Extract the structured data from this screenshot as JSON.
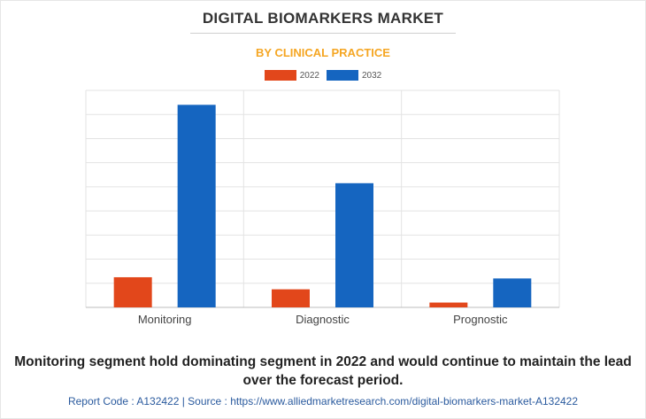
{
  "header": {
    "title": "DIGITAL BIOMARKERS MARKET",
    "subtitle": "BY CLINICAL PRACTICE"
  },
  "colors": {
    "series_2022": "#e2471b",
    "series_2032": "#1565c0",
    "grid": "#e3e3e3",
    "subtitle": "#f5a623"
  },
  "chart_data": {
    "type": "bar",
    "categories": [
      "Monitoring",
      "Diagnostic",
      "Prognostic"
    ],
    "series": [
      {
        "name": "2022",
        "values": [
          12.5,
          7.5,
          2
        ]
      },
      {
        "name": "2032",
        "values": [
          84,
          51.5,
          12
        ]
      }
    ],
    "ylim": [
      0,
      90
    ],
    "grid": true,
    "legend_position": "top-center"
  },
  "caption": "Monitoring segment hold dominating segment in 2022 and would continue to maintain the lead over the forecast period.",
  "footer": "Report Code : A132422  |  Source : https://www.alliedmarketresearch.com/digital-biomarkers-market-A132422"
}
